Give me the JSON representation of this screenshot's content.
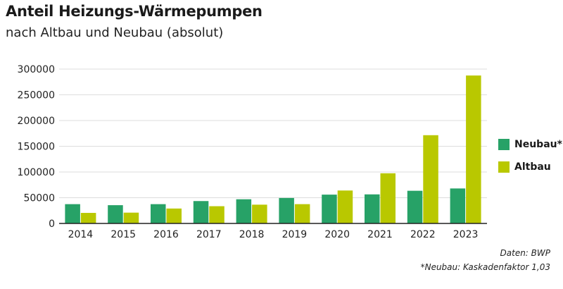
{
  "chart_data": {
    "type": "bar",
    "title": "Anteil Heizungs-Wärmepumpen",
    "subtitle": "nach Altbau und Neubau (absolut)",
    "categories": [
      "2014",
      "2015",
      "2016",
      "2017",
      "2018",
      "2019",
      "2020",
      "2021",
      "2022",
      "2023"
    ],
    "series": [
      {
        "name": "Neubau*",
        "color": "#27a267",
        "values": [
          37500,
          35500,
          37500,
          43500,
          47000,
          49500,
          56000,
          56500,
          63500,
          68000
        ]
      },
      {
        "name": "Altbau",
        "color": "#b9c800",
        "values": [
          20500,
          21000,
          29000,
          33500,
          36500,
          37500,
          64000,
          97500,
          171500,
          287500
        ]
      }
    ],
    "ylim": [
      0,
      300000
    ],
    "yticks": [
      0,
      50000,
      100000,
      150000,
      200000,
      250000,
      300000
    ],
    "ytick_labels": [
      "0",
      "50000",
      "100000",
      "150000",
      "200000",
      "250000",
      "300000"
    ],
    "grid": true,
    "legend_position": "right"
  },
  "footnotes": {
    "source": "Daten: BWP",
    "note": "*Neubau: Kaskadenfaktor 1,03"
  }
}
